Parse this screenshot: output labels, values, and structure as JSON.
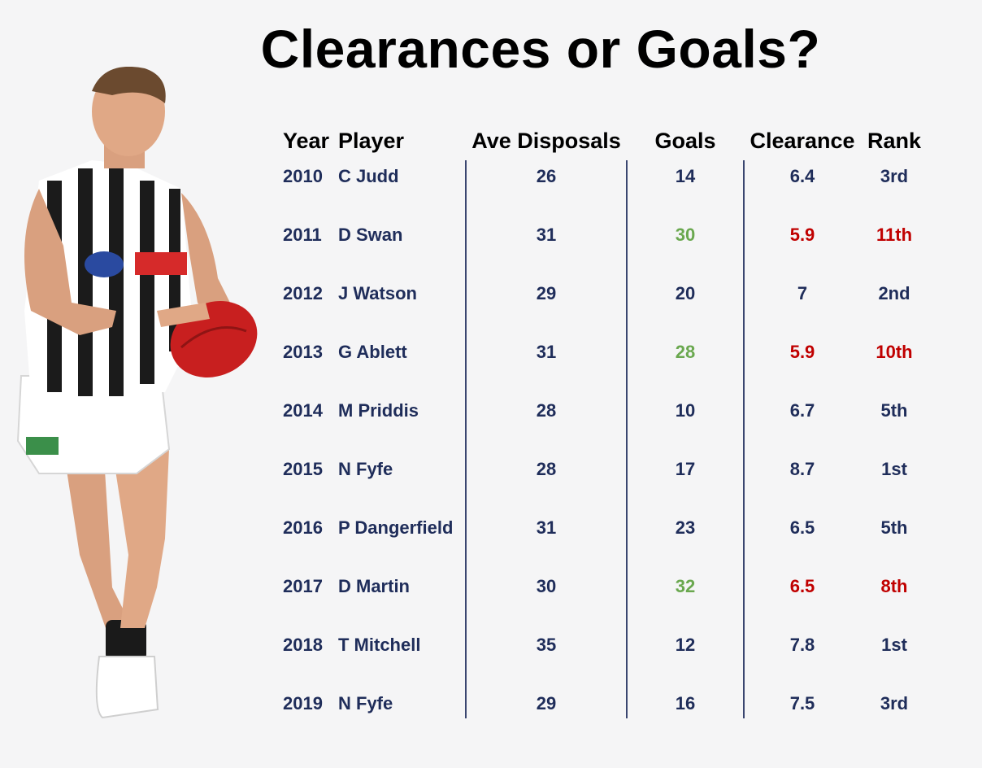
{
  "title": "Clearances or Goals?",
  "colors": {
    "default_text": "#1f2d5a",
    "header_text": "#000000",
    "goals_high": "#6aa84f",
    "clearance_low": "#c00000"
  },
  "chart_data": {
    "type": "table",
    "columns": [
      "Year",
      "Player",
      "Ave Disposals",
      "Goals",
      "Clearance",
      "Rank"
    ],
    "rows": [
      {
        "year": "2010",
        "player": "C Judd",
        "disposals": "26",
        "goals": "14",
        "clearance": "6.4",
        "rank": "3rd",
        "highlight": false
      },
      {
        "year": "2011",
        "player": "D Swan",
        "disposals": "31",
        "goals": "30",
        "clearance": "5.9",
        "rank": "11th",
        "highlight": true
      },
      {
        "year": "2012",
        "player": "J Watson",
        "disposals": "29",
        "goals": "20",
        "clearance": "7",
        "rank": "2nd",
        "highlight": false
      },
      {
        "year": "2013",
        "player": "G Ablett",
        "disposals": "31",
        "goals": "28",
        "clearance": "5.9",
        "rank": "10th",
        "highlight": true
      },
      {
        "year": "2014",
        "player": "M Priddis",
        "disposals": "28",
        "goals": "10",
        "clearance": "6.7",
        "rank": "5th",
        "highlight": false
      },
      {
        "year": "2015",
        "player": "N Fyfe",
        "disposals": "28",
        "goals": "17",
        "clearance": "8.7",
        "rank": "1st",
        "highlight": false
      },
      {
        "year": "2016",
        "player": "P Dangerfield",
        "disposals": "31",
        "goals": "23",
        "clearance": "6.5",
        "rank": "5th",
        "highlight": false
      },
      {
        "year": "2017",
        "player": "D Martin",
        "disposals": "30",
        "goals": "32",
        "clearance": "6.5",
        "rank": "8th",
        "highlight": true
      },
      {
        "year": "2018",
        "player": "T Mitchell",
        "disposals": "35",
        "goals": "12",
        "clearance": "7.8",
        "rank": "1st",
        "highlight": false
      },
      {
        "year": "2019",
        "player": "N Fyfe",
        "disposals": "29",
        "goals": "16",
        "clearance": "7.5",
        "rank": "3rd",
        "highlight": false
      }
    ]
  },
  "illustration": {
    "icon": "football-player-figure"
  }
}
